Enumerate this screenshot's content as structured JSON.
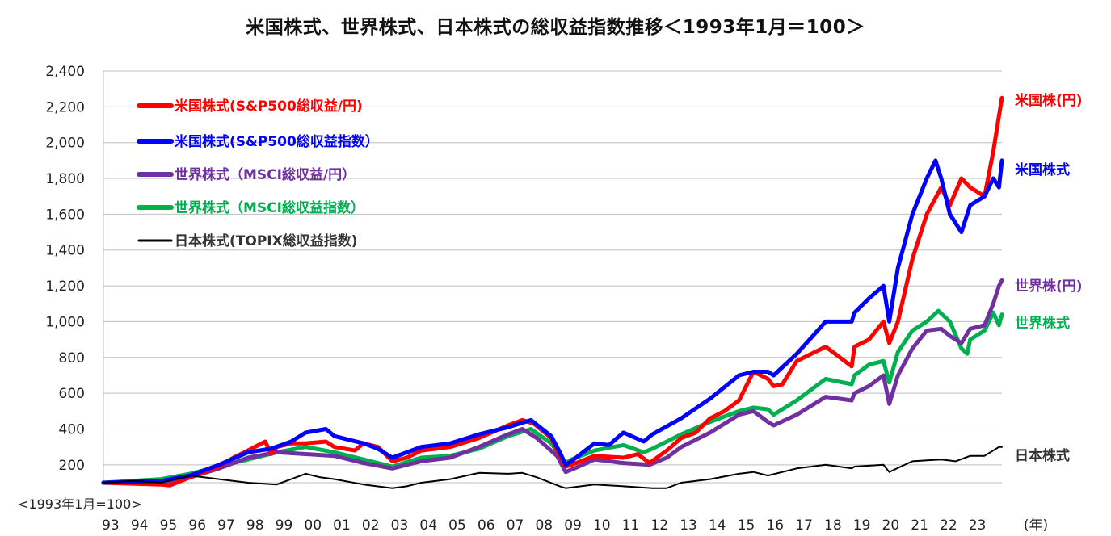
{
  "chart_data": {
    "type": "line",
    "title": "米国株式、世界株式、日本株式の総収益指数推移＜1993年1月＝100＞",
    "base_note": "<1993年1月=100>",
    "x_unit": "(年)",
    "x_ticks": [
      "93",
      "94",
      "95",
      "96",
      "97",
      "98",
      "99",
      "00",
      "01",
      "02",
      "03",
      "04",
      "05",
      "06",
      "07",
      "08",
      "09",
      "10",
      "11",
      "12",
      "13",
      "14",
      "15",
      "16",
      "17",
      "18",
      "19",
      "20",
      "21",
      "22",
      "23"
    ],
    "xlim": [
      1993.0,
      2024.1
    ],
    "ylim": [
      100,
      2400
    ],
    "y_ticks": [
      "200",
      "400",
      "600",
      "800",
      "1,000",
      "1,200",
      "1,400",
      "1,600",
      "1,800",
      "2,000",
      "2,200",
      "2,400"
    ],
    "y_tick_values": [
      200,
      400,
      600,
      800,
      1000,
      1200,
      1400,
      1600,
      1800,
      2000,
      2200,
      2400
    ],
    "grid": true,
    "legend": "top-left",
    "series": [
      {
        "name": "米国株式(S&P500総収益/円)",
        "end_label": "米国株(円)",
        "color": "#ff0000",
        "width": 5,
        "x": [
          1993.0,
          1994.0,
          1995.0,
          1995.3,
          1996.0,
          1997.0,
          1997.5,
          1998.0,
          1998.6,
          1998.8,
          1999.0,
          1999.5,
          2000.0,
          2000.7,
          2001.0,
          2001.7,
          2002.0,
          2002.5,
          2003.0,
          2003.5,
          2004.0,
          2005.0,
          2006.0,
          2007.0,
          2007.5,
          2007.9,
          2008.5,
          2008.8,
          2009.0,
          2009.2,
          2010.0,
          2011.0,
          2011.5,
          2011.9,
          2012.5,
          2013.0,
          2013.5,
          2014.0,
          2014.5,
          2015.0,
          2015.5,
          2016.0,
          2016.2,
          2016.5,
          2017.0,
          2018.0,
          2018.9,
          2019.0,
          2019.5,
          2020.0,
          2020.2,
          2020.5,
          2021.0,
          2021.5,
          2022.0,
          2022.3,
          2022.7,
          2023.0,
          2023.5,
          2023.8,
          2024.0,
          2024.1
        ],
        "y": [
          100,
          95,
          90,
          85,
          130,
          190,
          240,
          280,
          330,
          260,
          300,
          320,
          320,
          330,
          300,
          280,
          320,
          300,
          220,
          240,
          280,
          300,
          350,
          420,
          450,
          430,
          350,
          250,
          190,
          200,
          250,
          240,
          260,
          210,
          280,
          350,
          380,
          460,
          500,
          560,
          720,
          680,
          640,
          650,
          780,
          860,
          750,
          860,
          900,
          1000,
          880,
          1000,
          1350,
          1600,
          1750,
          1650,
          1800,
          1750,
          1700,
          1950,
          2150,
          2250
        ]
      },
      {
        "name": "米国株式(S&P500総収益指数）",
        "end_label": "米国株式",
        "color": "#0000ff",
        "width": 5,
        "x": [
          1993.0,
          1994.0,
          1995.0,
          1996.0,
          1997.0,
          1998.0,
          1998.8,
          1999.5,
          2000.0,
          2000.7,
          2001.0,
          2001.5,
          2002.0,
          2002.5,
          2003.0,
          2004.0,
          2005.0,
          2006.0,
          2007.0,
          2007.8,
          2008.5,
          2008.8,
          2009.0,
          2009.2,
          2010.0,
          2010.5,
          2011.0,
          2011.7,
          2012.0,
          2013.0,
          2014.0,
          2015.0,
          2015.5,
          2016.0,
          2016.2,
          2017.0,
          2018.0,
          2018.9,
          2019.0,
          2019.5,
          2020.0,
          2020.2,
          2020.5,
          2021.0,
          2021.5,
          2021.8,
          2022.0,
          2022.3,
          2022.7,
          2022.9,
          2023.0,
          2023.5,
          2023.8,
          2024.0,
          2024.1
        ],
        "y": [
          100,
          105,
          110,
          140,
          200,
          270,
          290,
          330,
          380,
          400,
          360,
          340,
          320,
          290,
          240,
          300,
          320,
          370,
          410,
          450,
          360,
          270,
          200,
          220,
          320,
          310,
          380,
          330,
          370,
          460,
          570,
          700,
          720,
          720,
          700,
          820,
          1000,
          1000,
          1050,
          1130,
          1200,
          1000,
          1300,
          1600,
          1800,
          1900,
          1800,
          1600,
          1500,
          1600,
          1650,
          1700,
          1800,
          1750,
          1900
        ]
      },
      {
        "name": "世界株式（MSCI総収益/円）",
        "end_label": "世界株(円)",
        "color": "#7030a0",
        "width": 5,
        "x": [
          1993.0,
          1994.0,
          1995.0,
          1996.0,
          1997.0,
          1998.0,
          1999.0,
          2000.0,
          2001.0,
          2002.0,
          2003.0,
          2004.0,
          2005.0,
          2006.0,
          2007.0,
          2007.5,
          2008.0,
          2008.7,
          2009.0,
          2009.3,
          2010.0,
          2011.0,
          2011.9,
          2012.5,
          2013.0,
          2014.0,
          2015.0,
          2015.5,
          2016.0,
          2016.2,
          2017.0,
          2018.0,
          2018.9,
          2019.0,
          2019.5,
          2020.0,
          2020.2,
          2020.5,
          2021.0,
          2021.5,
          2022.0,
          2022.3,
          2022.7,
          2023.0,
          2023.5,
          2023.8,
          2024.0,
          2024.1
        ],
        "y": [
          100,
          100,
          100,
          130,
          180,
          240,
          270,
          260,
          250,
          210,
          180,
          220,
          240,
          300,
          370,
          400,
          350,
          250,
          160,
          180,
          230,
          210,
          200,
          240,
          300,
          380,
          480,
          500,
          440,
          420,
          480,
          580,
          560,
          600,
          640,
          700,
          540,
          700,
          850,
          950,
          960,
          920,
          880,
          960,
          980,
          1100,
          1200,
          1230
        ]
      },
      {
        "name": "世界株式（MSCI総収益指数）",
        "end_label": "世界株式",
        "color": "#00b050",
        "width": 5,
        "x": [
          1993.0,
          1994.0,
          1995.0,
          1996.0,
          1997.0,
          1998.0,
          1999.0,
          2000.0,
          2001.0,
          2002.0,
          2003.0,
          2004.0,
          2005.0,
          2006.0,
          2007.0,
          2007.8,
          2008.5,
          2009.0,
          2009.2,
          2010.0,
          2011.0,
          2011.7,
          2012.0,
          2013.0,
          2014.0,
          2015.0,
          2015.5,
          2016.0,
          2016.2,
          2017.0,
          2018.0,
          2018.9,
          2019.0,
          2019.5,
          2020.0,
          2020.2,
          2020.5,
          2021.0,
          2021.5,
          2021.9,
          2022.3,
          2022.7,
          2022.9,
          2023.0,
          2023.5,
          2023.8,
          2024.0,
          2024.1
        ],
        "y": [
          100,
          110,
          120,
          150,
          190,
          230,
          270,
          300,
          270,
          230,
          190,
          240,
          250,
          290,
          360,
          400,
          320,
          210,
          230,
          280,
          310,
          270,
          290,
          370,
          440,
          500,
          520,
          510,
          480,
          560,
          680,
          650,
          700,
          760,
          780,
          660,
          830,
          950,
          1000,
          1060,
          1000,
          850,
          820,
          900,
          950,
          1050,
          980,
          1040
        ]
      },
      {
        "name": "日本株式(TOPIX総収益指数)",
        "end_label": "日本株式",
        "color": "#000000",
        "width": 2,
        "x": [
          1993.0,
          1994.0,
          1995.0,
          1996.0,
          1997.0,
          1998.0,
          1999.0,
          2000.0,
          2000.5,
          2001.0,
          2002.0,
          2003.0,
          2003.5,
          2004.0,
          2005.0,
          2006.0,
          2007.0,
          2007.5,
          2008.0,
          2008.8,
          2009.0,
          2010.0,
          2011.0,
          2012.0,
          2012.5,
          2013.0,
          2014.0,
          2015.0,
          2015.5,
          2016.0,
          2017.0,
          2018.0,
          2018.9,
          2019.0,
          2020.0,
          2020.2,
          2021.0,
          2022.0,
          2022.5,
          2023.0,
          2023.5,
          2024.0,
          2024.1
        ],
        "y": [
          100,
          110,
          100,
          140,
          120,
          100,
          90,
          150,
          130,
          120,
          90,
          70,
          80,
          100,
          120,
          155,
          150,
          155,
          130,
          80,
          70,
          90,
          80,
          70,
          70,
          100,
          120,
          150,
          160,
          140,
          180,
          200,
          180,
          190,
          200,
          160,
          220,
          230,
          220,
          250,
          250,
          300,
          300
        ]
      }
    ]
  }
}
